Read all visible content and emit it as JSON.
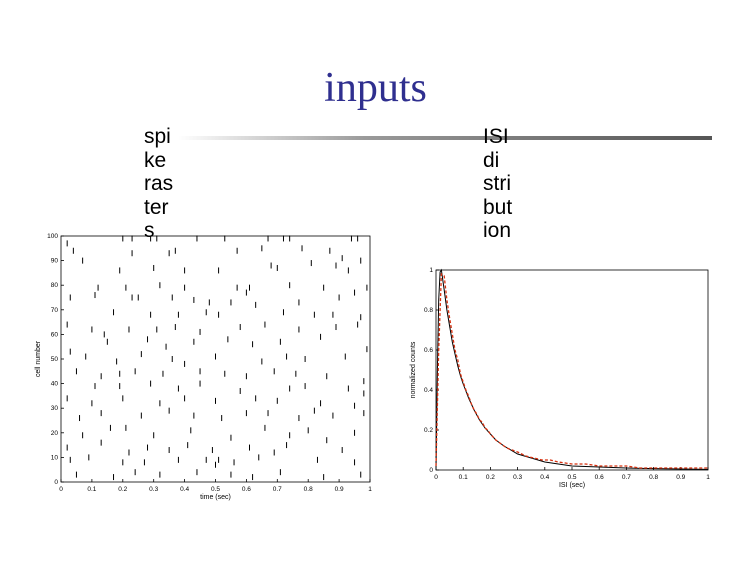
{
  "slide": {
    "title": "inputs",
    "left_bullet_lines": [
      "spi",
      "ke",
      "ras",
      "ter",
      "s"
    ],
    "right_bullet_lines": [
      "ISI",
      "di",
      "stri",
      "but",
      "ion"
    ]
  },
  "chart_data": [
    {
      "type": "scatter",
      "marker": "vertical-tick",
      "xlabel": "time (sec)",
      "ylabel": "cell number",
      "xlim": [
        0,
        1
      ],
      "ylim": [
        0,
        100
      ],
      "xticks": [
        "0",
        "0.1",
        "0.2",
        "0.3",
        "0.4",
        "0.5",
        "0.6",
        "0.7",
        "0.8",
        "0.9",
        "1"
      ],
      "yticks": [
        "0",
        "10",
        "20",
        "30",
        "40",
        "50",
        "60",
        "70",
        "80",
        "90",
        "100"
      ],
      "color": "#000000",
      "points": [
        [
          0.02,
          97
        ],
        [
          0.07,
          90
        ],
        [
          0.2,
          99
        ],
        [
          0.23,
          99
        ],
        [
          0.29,
          99
        ],
        [
          0.31,
          99
        ],
        [
          0.44,
          99
        ],
        [
          0.53,
          99
        ],
        [
          0.67,
          99
        ],
        [
          0.72,
          99
        ],
        [
          0.74,
          99
        ],
        [
          0.94,
          99
        ],
        [
          0.96,
          99
        ],
        [
          0.04,
          94
        ],
        [
          0.23,
          93
        ],
        [
          0.35,
          93
        ],
        [
          0.37,
          94
        ],
        [
          0.57,
          94
        ],
        [
          0.65,
          95
        ],
        [
          0.78,
          95
        ],
        [
          0.87,
          94
        ],
        [
          0.91,
          91
        ],
        [
          0.97,
          90
        ],
        [
          0.19,
          86
        ],
        [
          0.3,
          87
        ],
        [
          0.4,
          86
        ],
        [
          0.51,
          86
        ],
        [
          0.68,
          88
        ],
        [
          0.7,
          87
        ],
        [
          0.81,
          89
        ],
        [
          0.89,
          88
        ],
        [
          0.93,
          86
        ],
        [
          0.12,
          79
        ],
        [
          0.21,
          79
        ],
        [
          0.32,
          80
        ],
        [
          0.4,
          79
        ],
        [
          0.57,
          79
        ],
        [
          0.61,
          79
        ],
        [
          0.74,
          80
        ],
        [
          0.85,
          79
        ],
        [
          0.99,
          79
        ],
        [
          0.03,
          75
        ],
        [
          0.11,
          76
        ],
        [
          0.23,
          75
        ],
        [
          0.25,
          75
        ],
        [
          0.36,
          75
        ],
        [
          0.43,
          74
        ],
        [
          0.48,
          73
        ],
        [
          0.55,
          73
        ],
        [
          0.6,
          77
        ],
        [
          0.63,
          72
        ],
        [
          0.77,
          73
        ],
        [
          0.9,
          75
        ],
        [
          0.95,
          77
        ],
        [
          0.17,
          69
        ],
        [
          0.29,
          68
        ],
        [
          0.38,
          68
        ],
        [
          0.47,
          69
        ],
        [
          0.51,
          68
        ],
        [
          0.72,
          69
        ],
        [
          0.82,
          68
        ],
        [
          0.88,
          68
        ],
        [
          0.97,
          67
        ],
        [
          0.02,
          64
        ],
        [
          0.1,
          62
        ],
        [
          0.14,
          60
        ],
        [
          0.22,
          62
        ],
        [
          0.31,
          62
        ],
        [
          0.37,
          63
        ],
        [
          0.45,
          61
        ],
        [
          0.58,
          63
        ],
        [
          0.66,
          64
        ],
        [
          0.77,
          62
        ],
        [
          0.89,
          63
        ],
        [
          0.96,
          64
        ],
        [
          0.15,
          57
        ],
        [
          0.28,
          58
        ],
        [
          0.34,
          55
        ],
        [
          0.43,
          57
        ],
        [
          0.54,
          58
        ],
        [
          0.62,
          56
        ],
        [
          0.71,
          57
        ],
        [
          0.84,
          59
        ],
        [
          0.99,
          54
        ],
        [
          0.03,
          53
        ],
        [
          0.08,
          51
        ],
        [
          0.18,
          49
        ],
        [
          0.26,
          52
        ],
        [
          0.36,
          50
        ],
        [
          0.4,
          48
        ],
        [
          0.5,
          51
        ],
        [
          0.65,
          49
        ],
        [
          0.73,
          51
        ],
        [
          0.79,
          50
        ],
        [
          0.92,
          51
        ],
        [
          0.05,
          45
        ],
        [
          0.13,
          43
        ],
        [
          0.19,
          44
        ],
        [
          0.24,
          45
        ],
        [
          0.33,
          44
        ],
        [
          0.45,
          45
        ],
        [
          0.53,
          44
        ],
        [
          0.6,
          43
        ],
        [
          0.69,
          45
        ],
        [
          0.76,
          44
        ],
        [
          0.86,
          43
        ],
        [
          0.98,
          41
        ],
        [
          0.11,
          39
        ],
        [
          0.19,
          39
        ],
        [
          0.29,
          40
        ],
        [
          0.38,
          38
        ],
        [
          0.45,
          40
        ],
        [
          0.58,
          37
        ],
        [
          0.74,
          38
        ],
        [
          0.79,
          39
        ],
        [
          0.93,
          38
        ],
        [
          0.98,
          36
        ],
        [
          0.02,
          34
        ],
        [
          0.1,
          32
        ],
        [
          0.2,
          34
        ],
        [
          0.32,
          32
        ],
        [
          0.4,
          34
        ],
        [
          0.5,
          33
        ],
        [
          0.63,
          34
        ],
        [
          0.7,
          33
        ],
        [
          0.84,
          32
        ],
        [
          0.95,
          31
        ],
        [
          0.06,
          26
        ],
        [
          0.13,
          28
        ],
        [
          0.26,
          27
        ],
        [
          0.35,
          29
        ],
        [
          0.43,
          27
        ],
        [
          0.52,
          26
        ],
        [
          0.6,
          28
        ],
        [
          0.67,
          28
        ],
        [
          0.77,
          26
        ],
        [
          0.82,
          29
        ],
        [
          0.88,
          27
        ],
        [
          0.98,
          28
        ],
        [
          0.07,
          19
        ],
        [
          0.16,
          22
        ],
        [
          0.21,
          22
        ],
        [
          0.3,
          19
        ],
        [
          0.42,
          21
        ],
        [
          0.55,
          18
        ],
        [
          0.66,
          22
        ],
        [
          0.74,
          19
        ],
        [
          0.8,
          21
        ],
        [
          0.86,
          17
        ],
        [
          0.95,
          20
        ],
        [
          0.02,
          14
        ],
        [
          0.13,
          16
        ],
        [
          0.22,
          12
        ],
        [
          0.28,
          14
        ],
        [
          0.35,
          13
        ],
        [
          0.41,
          15
        ],
        [
          0.49,
          13
        ],
        [
          0.61,
          14
        ],
        [
          0.69,
          12
        ],
        [
          0.73,
          15
        ],
        [
          0.91,
          13
        ],
        [
          0.03,
          9
        ],
        [
          0.09,
          10
        ],
        [
          0.2,
          8
        ],
        [
          0.27,
          8
        ],
        [
          0.38,
          9
        ],
        [
          0.47,
          9
        ],
        [
          0.5,
          7
        ],
        [
          0.51,
          9
        ],
        [
          0.56,
          8
        ],
        [
          0.64,
          10
        ],
        [
          0.83,
          9
        ],
        [
          0.95,
          8
        ],
        [
          0.05,
          3
        ],
        [
          0.17,
          2
        ],
        [
          0.24,
          4
        ],
        [
          0.32,
          3
        ],
        [
          0.44,
          4
        ],
        [
          0.55,
          3
        ],
        [
          0.62,
          2
        ],
        [
          0.71,
          4
        ],
        [
          0.85,
          2
        ],
        [
          0.97,
          3
        ]
      ]
    },
    {
      "type": "line",
      "xlabel": "ISI (sec)",
      "ylabel": "normalized counts",
      "xlim": [
        0,
        1
      ],
      "ylim": [
        0,
        1
      ],
      "xticks": [
        "0",
        "0.1",
        "0.2",
        "0.3",
        "0.4",
        "0.5",
        "0.6",
        "0.7",
        "0.8",
        "0.9",
        "1"
      ],
      "yticks": [
        "0",
        "0.2",
        "0.4",
        "0.6",
        "0.8",
        "1"
      ],
      "series": [
        {
          "style": "dashed",
          "color": "#d7300f",
          "x": [
            0.0,
            0.01,
            0.02,
            0.03,
            0.04,
            0.05,
            0.06,
            0.07,
            0.08,
            0.09,
            0.1,
            0.11,
            0.12,
            0.13,
            0.14,
            0.15,
            0.16,
            0.17,
            0.18,
            0.19,
            0.2,
            0.22,
            0.24,
            0.26,
            0.28,
            0.3,
            0.33,
            0.36,
            0.39,
            0.42,
            0.45,
            0.5,
            0.55,
            0.6,
            0.65,
            0.7,
            0.75,
            0.8,
            0.85,
            0.9,
            0.95,
            1.0
          ],
          "y": [
            0.02,
            0.6,
            0.98,
            0.97,
            0.85,
            0.76,
            0.68,
            0.6,
            0.55,
            0.48,
            0.44,
            0.4,
            0.37,
            0.33,
            0.3,
            0.28,
            0.25,
            0.24,
            0.21,
            0.2,
            0.18,
            0.15,
            0.13,
            0.11,
            0.1,
            0.09,
            0.07,
            0.06,
            0.05,
            0.05,
            0.04,
            0.03,
            0.03,
            0.02,
            0.02,
            0.02,
            0.01,
            0.01,
            0.01,
            0.01,
            0.01,
            0.01
          ]
        },
        {
          "style": "solid",
          "color": "#000000",
          "x": [
            0.0,
            0.005,
            0.01,
            0.015,
            0.02,
            0.03,
            0.04,
            0.05,
            0.06,
            0.07,
            0.08,
            0.09,
            0.1,
            0.12,
            0.14,
            0.16,
            0.18,
            0.2,
            0.22,
            0.25,
            0.3,
            0.35,
            0.4,
            0.45,
            0.5,
            0.6,
            0.7,
            0.8,
            0.9,
            1.0
          ],
          "y": [
            0.0,
            0.5,
            0.85,
            0.99,
            1.0,
            0.9,
            0.8,
            0.72,
            0.64,
            0.58,
            0.52,
            0.47,
            0.43,
            0.36,
            0.3,
            0.25,
            0.21,
            0.18,
            0.15,
            0.12,
            0.08,
            0.06,
            0.04,
            0.03,
            0.02,
            0.015,
            0.01,
            0.007,
            0.005,
            0.003
          ]
        }
      ]
    }
  ]
}
